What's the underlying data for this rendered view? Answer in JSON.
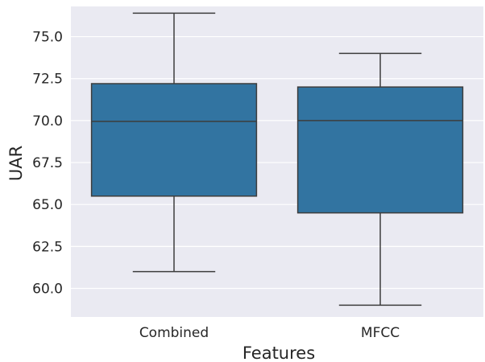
{
  "chart_data": {
    "type": "box",
    "xlabel": "Features",
    "ylabel": "UAR",
    "ylim": [
      58.3,
      76.8
    ],
    "yticks": [
      60.0,
      62.5,
      65.0,
      67.5,
      70.0,
      72.5,
      75.0
    ],
    "ytick_labels": [
      "60.0",
      "62.5",
      "65.0",
      "67.5",
      "70.0",
      "72.5",
      "75.0"
    ],
    "categories": [
      "Combined",
      "MFCC"
    ],
    "boxes": [
      {
        "category": "Combined",
        "whisker_low": 61.0,
        "q1": 65.5,
        "median": 69.95,
        "q3": 72.2,
        "whisker_high": 76.4
      },
      {
        "category": "MFCC",
        "whisker_low": 59.0,
        "q1": 64.5,
        "median": 70.0,
        "q3": 72.0,
        "whisker_high": 74.0
      }
    ],
    "colors": {
      "background": "#eaeaf2",
      "grid": "#ffffff",
      "box_fill": "#3274a1",
      "box_line": "#3d3d3d",
      "text": "#262626"
    },
    "grid": true
  }
}
